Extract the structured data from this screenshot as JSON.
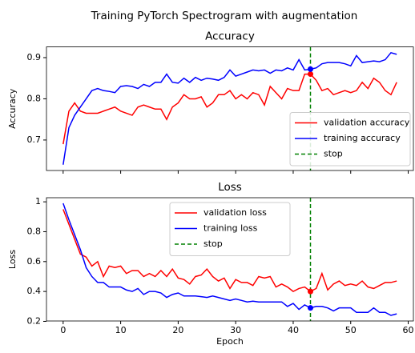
{
  "title": "Training PyTorch Spectrogram with augmentation",
  "chart_data": [
    {
      "type": "line",
      "title": "Accuracy",
      "ylabel": "Accuracy",
      "x": [
        0,
        1,
        2,
        3,
        4,
        5,
        6,
        7,
        8,
        9,
        10,
        11,
        12,
        13,
        14,
        15,
        16,
        17,
        18,
        19,
        20,
        21,
        22,
        23,
        24,
        25,
        26,
        27,
        28,
        29,
        30,
        31,
        32,
        33,
        34,
        35,
        36,
        37,
        38,
        39,
        40,
        41,
        42,
        43,
        44,
        45,
        46,
        47,
        48,
        49,
        50,
        51,
        52,
        53,
        54,
        55,
        56,
        57,
        58
      ],
      "series": [
        {
          "name": "validation accuracy",
          "color": "red",
          "values": [
            0.69,
            0.77,
            0.79,
            0.77,
            0.765,
            0.765,
            0.765,
            0.77,
            0.775,
            0.78,
            0.77,
            0.765,
            0.76,
            0.78,
            0.785,
            0.78,
            0.775,
            0.775,
            0.75,
            0.78,
            0.79,
            0.81,
            0.8,
            0.8,
            0.805,
            0.78,
            0.79,
            0.81,
            0.81,
            0.82,
            0.8,
            0.81,
            0.8,
            0.815,
            0.81,
            0.785,
            0.83,
            0.815,
            0.8,
            0.825,
            0.82,
            0.82,
            0.86,
            0.86,
            0.845,
            0.82,
            0.825,
            0.81,
            0.815,
            0.82,
            0.815,
            0.82,
            0.84,
            0.825,
            0.85,
            0.84,
            0.82,
            0.81,
            0.84
          ]
        },
        {
          "name": "training accuracy",
          "color": "blue",
          "values": [
            0.64,
            0.73,
            0.76,
            0.78,
            0.8,
            0.82,
            0.825,
            0.82,
            0.818,
            0.815,
            0.83,
            0.832,
            0.83,
            0.825,
            0.835,
            0.83,
            0.84,
            0.84,
            0.86,
            0.84,
            0.838,
            0.85,
            0.84,
            0.852,
            0.845,
            0.85,
            0.848,
            0.845,
            0.852,
            0.87,
            0.855,
            0.86,
            0.865,
            0.87,
            0.868,
            0.87,
            0.862,
            0.87,
            0.868,
            0.875,
            0.87,
            0.895,
            0.87,
            0.872,
            0.875,
            0.885,
            0.888,
            0.888,
            0.888,
            0.885,
            0.88,
            0.905,
            0.888,
            0.89,
            0.892,
            0.89,
            0.895,
            0.912,
            0.908
          ]
        }
      ],
      "vline": {
        "name": "stop",
        "color": "green",
        "x": 43
      },
      "xlim": [
        -2.9,
        60.9
      ],
      "xticks": [
        0,
        10,
        20,
        30,
        40,
        50,
        60
      ],
      "ylim": [
        0.626,
        0.926
      ],
      "yticks": [
        0.7,
        0.8,
        0.9
      ],
      "legend": "lower right"
    },
    {
      "type": "line",
      "title": "Loss",
      "ylabel": "Loss",
      "xlabel": "Epoch",
      "x": [
        0,
        1,
        2,
        3,
        4,
        5,
        6,
        7,
        8,
        9,
        10,
        11,
        12,
        13,
        14,
        15,
        16,
        17,
        18,
        19,
        20,
        21,
        22,
        23,
        24,
        25,
        26,
        27,
        28,
        29,
        30,
        31,
        32,
        33,
        34,
        35,
        36,
        37,
        38,
        39,
        40,
        41,
        42,
        43,
        44,
        45,
        46,
        47,
        48,
        49,
        50,
        51,
        52,
        53,
        54,
        55,
        56,
        57,
        58
      ],
      "series": [
        {
          "name": "validation loss",
          "color": "red",
          "values": [
            0.95,
            0.85,
            0.75,
            0.65,
            0.63,
            0.57,
            0.6,
            0.5,
            0.57,
            0.56,
            0.57,
            0.52,
            0.54,
            0.54,
            0.5,
            0.52,
            0.5,
            0.54,
            0.5,
            0.55,
            0.49,
            0.48,
            0.45,
            0.5,
            0.51,
            0.55,
            0.5,
            0.47,
            0.49,
            0.42,
            0.48,
            0.46,
            0.46,
            0.44,
            0.5,
            0.49,
            0.5,
            0.43,
            0.45,
            0.43,
            0.4,
            0.42,
            0.43,
            0.4,
            0.42,
            0.52,
            0.41,
            0.45,
            0.47,
            0.44,
            0.45,
            0.44,
            0.47,
            0.43,
            0.42,
            0.44,
            0.46,
            0.46,
            0.47
          ]
        },
        {
          "name": "training loss",
          "color": "blue",
          "values": [
            0.99,
            0.88,
            0.78,
            0.68,
            0.56,
            0.5,
            0.46,
            0.46,
            0.43,
            0.43,
            0.43,
            0.41,
            0.4,
            0.42,
            0.38,
            0.4,
            0.4,
            0.39,
            0.36,
            0.38,
            0.39,
            0.37,
            0.37,
            0.37,
            0.365,
            0.36,
            0.37,
            0.36,
            0.35,
            0.34,
            0.35,
            0.34,
            0.33,
            0.335,
            0.33,
            0.33,
            0.33,
            0.33,
            0.33,
            0.3,
            0.32,
            0.28,
            0.31,
            0.29,
            0.3,
            0.3,
            0.29,
            0.27,
            0.29,
            0.29,
            0.29,
            0.26,
            0.26,
            0.26,
            0.29,
            0.26,
            0.26,
            0.24,
            0.25
          ]
        }
      ],
      "vline": {
        "name": "stop",
        "color": "green",
        "x": 43
      },
      "xlim": [
        -2.9,
        60.9
      ],
      "xticks": [
        0,
        10,
        20,
        30,
        40,
        50,
        60
      ],
      "ylim": [
        0.2025,
        1.0275
      ],
      "yticks": [
        0.2,
        0.4,
        0.6,
        0.8,
        1.0
      ],
      "legend": "upper center"
    }
  ]
}
